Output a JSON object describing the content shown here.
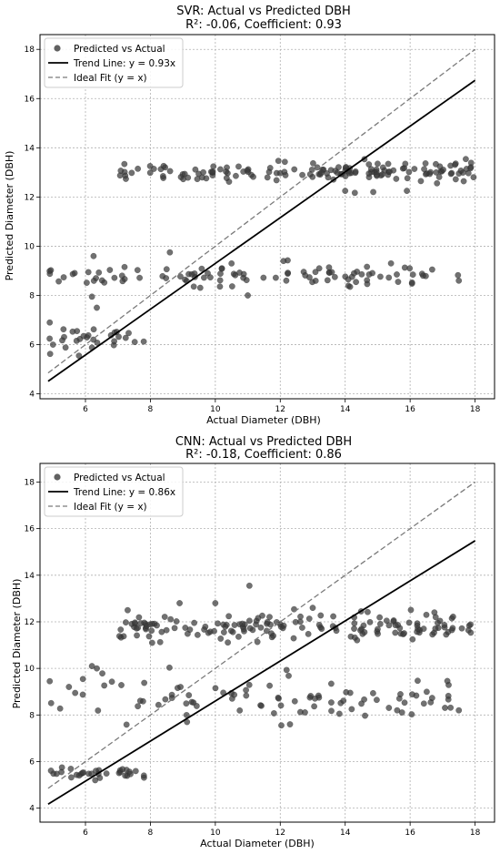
{
  "chart_data": [
    {
      "type": "scatter",
      "title": "SVR: Actual vs Predicted DBH",
      "subtitle": "R²: -0.06, Coefficient: 0.93",
      "xlabel": "Actual Diameter (DBH)",
      "ylabel": "Predicted Diameter (DBH)",
      "xlim": [
        4.6,
        18.6
      ],
      "ylim": [
        3.8,
        18.6
      ],
      "xticks": [
        6,
        8,
        10,
        12,
        14,
        16,
        18
      ],
      "yticks": [
        4,
        6,
        8,
        10,
        12,
        14,
        16,
        18
      ],
      "grid": true,
      "legend_position": "top-left",
      "legend": [
        "Predicted vs Actual",
        "Trend Line: y = 0.93x",
        "Ideal Fit (y = x)"
      ],
      "trend": {
        "slope": 0.93,
        "x_range": [
          4.85,
          18.0
        ]
      },
      "ideal": {
        "x_range": [
          4.85,
          18.0
        ]
      },
      "point_color": "#3a3a3a",
      "clusters": [
        {
          "x_range": [
            4.85,
            7.9
          ],
          "y_center": 6.3,
          "y_spread": 0.35,
          "count": 28
        },
        {
          "x_range": [
            4.85,
            17.6
          ],
          "y_center": 8.8,
          "y_spread": 0.3,
          "count": 95
        },
        {
          "x_range": [
            7.0,
            18.0
          ],
          "y_center": 13.05,
          "y_spread": 0.3,
          "count": 150
        }
      ],
      "points": [
        {
          "x": 6.25,
          "y": 9.6
        },
        {
          "x": 6.2,
          "y": 7.95
        },
        {
          "x": 6.35,
          "y": 7.5
        },
        {
          "x": 8.6,
          "y": 9.75
        },
        {
          "x": 12.1,
          "y": 9.4
        },
        {
          "x": 10.5,
          "y": 9.3
        },
        {
          "x": 11.0,
          "y": 8.0
        },
        {
          "x": 14.15,
          "y": 8.35
        },
        {
          "x": 16.4,
          "y": 8.8
        },
        {
          "x": 17.5,
          "y": 8.6
        },
        {
          "x": 4.9,
          "y": 6.9
        },
        {
          "x": 5.0,
          "y": 6.0
        },
        {
          "x": 15.9,
          "y": 12.25
        },
        {
          "x": 14.0,
          "y": 12.25
        },
        {
          "x": 13.2,
          "y": 9.1
        }
      ]
    },
    {
      "type": "scatter",
      "title": "CNN: Actual vs Predicted DBH",
      "subtitle": "R²: -0.18, Coefficient: 0.86",
      "xlabel": "Actual Diameter (DBH)",
      "ylabel": "Predicted Diameter (DBH)",
      "xlim": [
        4.6,
        18.6
      ],
      "ylim": [
        3.4,
        18.8
      ],
      "xticks": [
        6,
        8,
        10,
        12,
        14,
        16,
        18
      ],
      "yticks": [
        4,
        6,
        8,
        10,
        12,
        14,
        16,
        18
      ],
      "grid": true,
      "legend_position": "top-left",
      "legend": [
        "Predicted vs Actual",
        "Trend Line: y = 0.86x",
        "Ideal Fit (y = x)"
      ],
      "trend": {
        "slope": 0.86,
        "x_range": [
          4.85,
          18.0
        ]
      },
      "ideal": {
        "x_range": [
          4.85,
          18.0
        ]
      },
      "point_color": "#3a3a3a",
      "clusters": [
        {
          "x_range": [
            4.85,
            7.9
          ],
          "y_center": 5.5,
          "y_spread": 0.2,
          "count": 30
        },
        {
          "x_range": [
            4.85,
            17.6
          ],
          "y_center": 8.7,
          "y_spread": 0.7,
          "count": 90
        },
        {
          "x_range": [
            7.0,
            18.0
          ],
          "y_center": 11.8,
          "y_spread": 0.45,
          "count": 160
        }
      ],
      "points": [
        {
          "x": 11.05,
          "y": 13.55
        },
        {
          "x": 8.9,
          "y": 12.8
        },
        {
          "x": 7.3,
          "y": 12.5
        },
        {
          "x": 6.2,
          "y": 10.1
        },
        {
          "x": 6.35,
          "y": 10.0
        },
        {
          "x": 4.9,
          "y": 9.45
        },
        {
          "x": 14.2,
          "y": 8.25
        },
        {
          "x": 17.5,
          "y": 8.2
        },
        {
          "x": 12.3,
          "y": 7.6
        },
        {
          "x": 15.6,
          "y": 8.2
        },
        {
          "x": 6.3,
          "y": 5.2
        },
        {
          "x": 7.8,
          "y": 5.4
        },
        {
          "x": 16.5,
          "y": 12.3
        },
        {
          "x": 13.0,
          "y": 12.6
        },
        {
          "x": 10.0,
          "y": 12.8
        }
      ]
    }
  ]
}
